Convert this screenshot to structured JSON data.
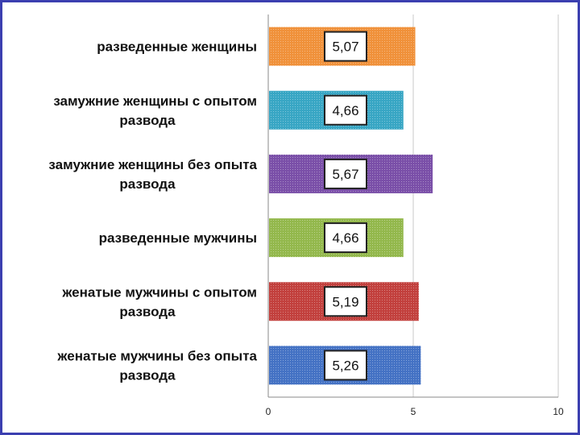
{
  "chart_data": {
    "type": "bar",
    "orientation": "horizontal",
    "title": "",
    "xlabel": "",
    "ylabel": "",
    "xlim": [
      0,
      10
    ],
    "x_ticks": [
      "0",
      "5",
      "10"
    ],
    "grid": true,
    "legend": "none",
    "categories": [
      [
        "разведенные женщины"
      ],
      [
        "замужние женщины с опытом",
        "развода"
      ],
      [
        "замужние женщины без опыта",
        "развода"
      ],
      [
        "разведенные мужчины"
      ],
      [
        "женатые мужчины с опытом",
        "развода"
      ],
      [
        "женатые мужчины без опыта",
        "развода"
      ]
    ],
    "values": [
      5.07,
      4.66,
      5.67,
      4.66,
      5.19,
      5.26
    ],
    "value_labels": [
      "5,07",
      "4,66",
      "5,67",
      "4,66",
      "5,19",
      "5,26"
    ],
    "colors": [
      "#f0913a",
      "#38a6c4",
      "#7a4fa8",
      "#93b84c",
      "#c2403d",
      "#4472c4"
    ]
  }
}
